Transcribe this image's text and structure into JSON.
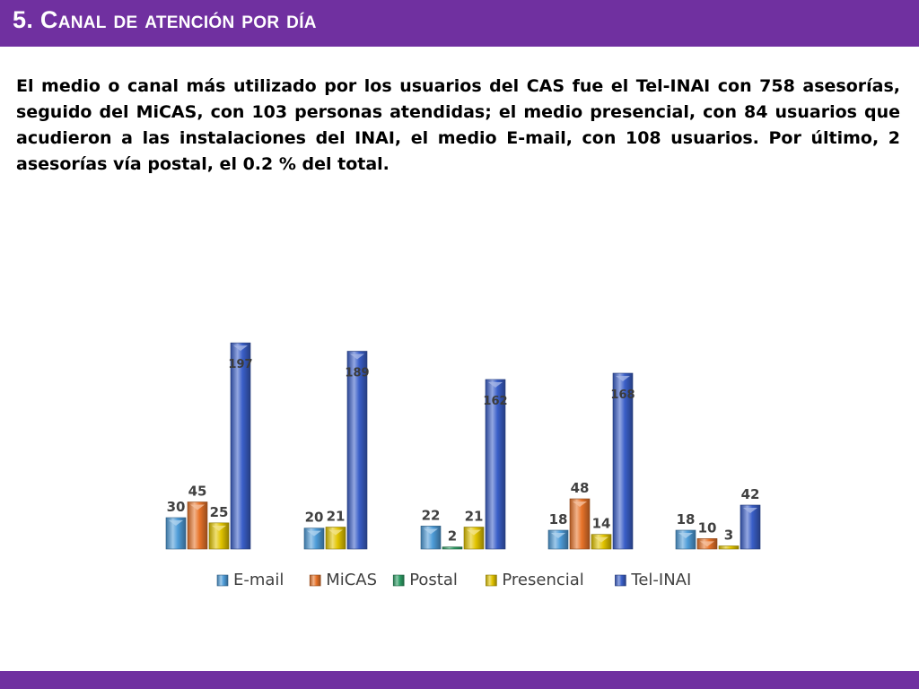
{
  "header": {
    "title": "5. Canal de atención por día"
  },
  "content": {
    "paragraph": "El medio o canal más utilizado por los usuarios del CAS fue el Tel-INAI con 758 asesorías, seguido del MiCAS, con 103 personas atendidas; el medio presencial, con 84 usuarios que acudieron a las instalaciones del INAI, el medio E-mail, con 108 usuarios. Por último, 2 asesorías vía postal, el 0.2 % del total."
  },
  "colors": {
    "theme_purple": "#7030a0"
  },
  "chart_data": {
    "type": "bar",
    "categories": [
      "",
      "",
      "",
      "",
      ""
    ],
    "series": [
      {
        "name": "E-mail",
        "color": "#4e9cd8",
        "values": [
          30,
          20,
          22,
          18,
          18
        ]
      },
      {
        "name": "MiCAS",
        "color": "#e8742a",
        "values": [
          45,
          null,
          null,
          48,
          10
        ]
      },
      {
        "name": "Postal",
        "color": "#2e9e66",
        "values": [
          null,
          null,
          2,
          null,
          null
        ]
      },
      {
        "name": "Presencial",
        "color": "#e2c400",
        "values": [
          25,
          21,
          21,
          14,
          3
        ]
      },
      {
        "name": "Tel-INAI",
        "color": "#3a5fc8",
        "values": [
          197,
          189,
          162,
          168,
          42
        ]
      }
    ],
    "ylim": [
      0,
      210
    ],
    "grid": false,
    "legend_position": "bottom"
  }
}
